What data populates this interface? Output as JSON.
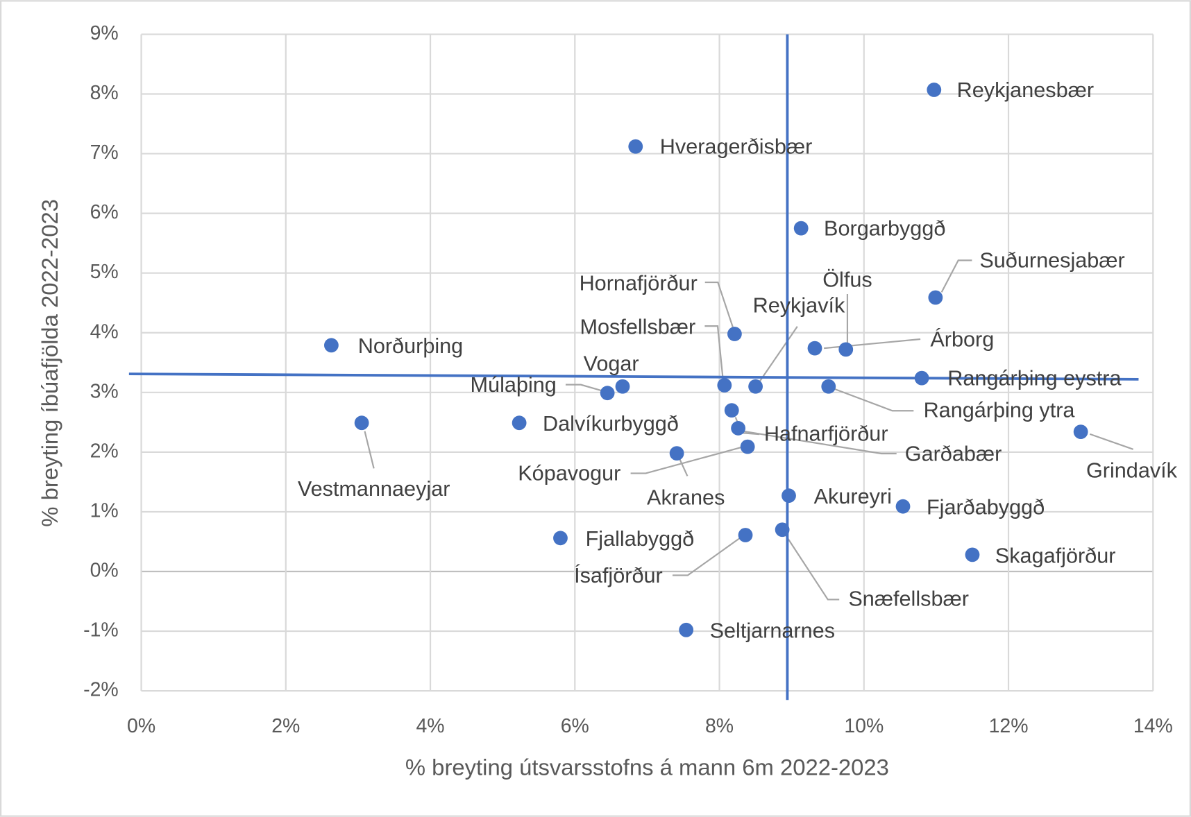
{
  "chart_data": {
    "type": "scatter",
    "x_label": "% breyting útsvarsstofns á mann 6m 2022-2023",
    "y_label": "% breyting íbúafjölda 2022-2023",
    "color": "#4472c4",
    "grid": true,
    "labels": [
      "Reykjanesbær",
      "Hveragerðisbær",
      "Borgarbyggð",
      "Suðurnesjabær",
      "Hornafjörður",
      "Norðurþing",
      "Ölfus",
      "Árborg",
      "Reykjavík",
      "Mosfellsbær",
      "Vogar",
      "Múlaþing",
      "Rangárþing eystra",
      "Rangárþing ytra",
      "Vestmannaeyjar",
      "Dalvíkurbyggð",
      "Garðabær",
      "Hafnarfjörður",
      "Kópavogur",
      "Akranes",
      "Grindavík",
      "Akureyri",
      "Fjarðabyggð",
      "Fjallabyggð",
      "Ísafjörður",
      "Snæfellsbær",
      "Skagafjörður",
      "Seltjarnarnes"
    ],
    "x": [
      10.97,
      6.84,
      9.13,
      10.99,
      8.21,
      2.63,
      9.75,
      9.32,
      8.5,
      8.07,
      6.66,
      6.45,
      10.8,
      9.51,
      3.05,
      5.23,
      8.17,
      8.26,
      8.39,
      7.41,
      13.0,
      8.96,
      10.54,
      5.8,
      8.36,
      8.87,
      11.5,
      7.54
    ],
    "y": [
      8.07,
      7.12,
      5.75,
      4.59,
      3.98,
      3.79,
      3.72,
      3.74,
      3.1,
      3.12,
      3.1,
      2.99,
      3.24,
      3.1,
      2.49,
      2.49,
      2.7,
      2.4,
      2.09,
      1.98,
      2.34,
      1.27,
      1.09,
      0.56,
      0.61,
      0.7,
      0.28,
      -0.98
    ],
    "vline": 8.94,
    "trend_line": {
      "x": [
        -0.17,
        13.8
      ],
      "y": [
        3.31,
        3.22
      ]
    },
    "xlim": [
      0,
      14
    ],
    "ylim": [
      -2,
      9
    ],
    "xticks": [
      {
        "value": 0,
        "label": "0%"
      },
      {
        "value": 2,
        "label": "2%"
      },
      {
        "value": 4,
        "label": "4%"
      },
      {
        "value": 6,
        "label": "6%"
      },
      {
        "value": 8,
        "label": "8%"
      },
      {
        "value": 10,
        "label": "10%"
      },
      {
        "value": 12,
        "label": "12%"
      },
      {
        "value": 14,
        "label": "14%"
      }
    ],
    "yticks": [
      {
        "value": -2,
        "label": "-2%"
      },
      {
        "value": -1,
        "label": "-1%"
      },
      {
        "value": 0,
        "label": "0%"
      },
      {
        "value": 1,
        "label": "1%"
      },
      {
        "value": 2,
        "label": "2%"
      },
      {
        "value": 3,
        "label": "3%"
      },
      {
        "value": 4,
        "label": "4%"
      },
      {
        "value": 5,
        "label": "5%"
      },
      {
        "value": 6,
        "label": "6%"
      },
      {
        "value": 7,
        "label": "7%"
      },
      {
        "value": 8,
        "label": "8%"
      },
      {
        "value": 9,
        "label": "9%"
      }
    ]
  }
}
